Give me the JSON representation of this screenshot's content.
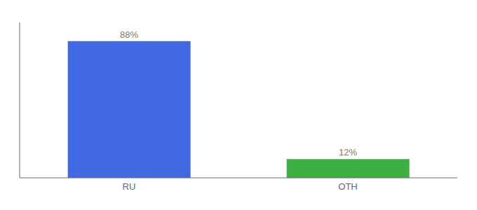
{
  "chart_data": {
    "type": "bar",
    "categories": [
      "RU",
      "OTH"
    ],
    "values": [
      88,
      12
    ],
    "value_labels": [
      "88%",
      "12%"
    ],
    "colors": [
      "#4169e1",
      "#3cb043"
    ],
    "ylim": [
      0,
      100
    ],
    "grid": false,
    "data_labels": true,
    "tick_labels": "x"
  }
}
